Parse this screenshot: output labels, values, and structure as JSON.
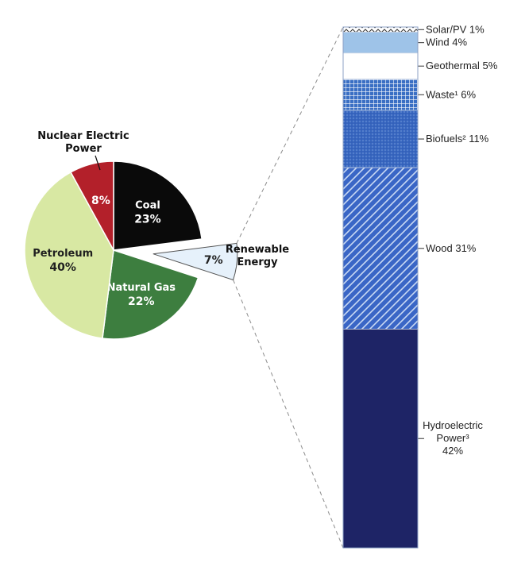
{
  "chart_data": [
    {
      "type": "pie",
      "slices": [
        {
          "name": "Coal",
          "value": 23,
          "value_label": "23%",
          "color": "#0a0a0a",
          "pattern": "solid",
          "label_color": "#ffffff"
        },
        {
          "name": "Renewable Energy",
          "value": 7,
          "value_label": "7%",
          "color": "#e6f1fb",
          "pattern": "solid",
          "label_color": "#222222",
          "exploded": true
        },
        {
          "name": "Natural Gas",
          "value": 22,
          "value_label": "22%",
          "color": "#3d7e3f",
          "pattern": "solid",
          "label_color": "#ffffff"
        },
        {
          "name": "Petroleum",
          "value": 40,
          "value_label": "40%",
          "color": "#d8e8a3",
          "pattern": "solid",
          "label_color": "#1f1f1f"
        },
        {
          "name": "Nuclear Electric Power",
          "value": 8,
          "value_label": "8%",
          "color": "#b3202a",
          "pattern": "solid",
          "label_color": "#ffffff"
        }
      ],
      "external_labels": {
        "nuclear": [
          "Nuclear Electric",
          "Power"
        ],
        "renewable": [
          "Renewable",
          "Energy"
        ]
      }
    },
    {
      "type": "bar",
      "stacked": true,
      "segments": [
        {
          "name": "Solar/PV",
          "value": 1,
          "label_lines": [
            "Solar/PV 1%"
          ],
          "color": "#ffffff",
          "pattern": "zigzag"
        },
        {
          "name": "Wind",
          "value": 4,
          "label_lines": [
            "Wind 4%"
          ],
          "color": "#9ec3e8",
          "pattern": "solid"
        },
        {
          "name": "Geothermal",
          "value": 5,
          "label_lines": [
            "Geothermal 5%"
          ],
          "color": "#ffffff",
          "pattern": "solid"
        },
        {
          "name": "Waste¹",
          "value": 6,
          "label_lines": [
            "Waste¹ 6%"
          ],
          "color": "#3a6fc4",
          "pattern": "grid"
        },
        {
          "name": "Biofuels²",
          "value": 11,
          "label_lines": [
            "Biofuels² 11%"
          ],
          "color": "#3766c0",
          "pattern": "dots"
        },
        {
          "name": "Wood",
          "value": 31,
          "label_lines": [
            "Wood 31%"
          ],
          "color": "#3a66c6",
          "pattern": "hatch"
        },
        {
          "name": "Hydroelectric Power³",
          "value": 42,
          "label_lines": [
            "Hydroelectric",
            "Power³",
            "42%"
          ],
          "color": "#1e2466",
          "pattern": "solid"
        }
      ]
    }
  ]
}
